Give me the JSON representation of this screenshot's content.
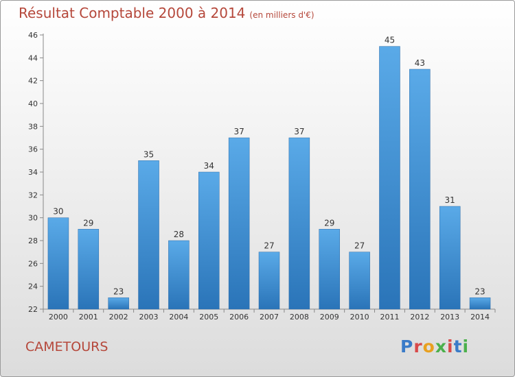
{
  "title": "Résultat Comptable 2000 à 2014",
  "subtitle": "(en milliers d'€)",
  "town": "CAMETOURS",
  "logo": "Proxiti",
  "colors": {
    "title": "#b5473a",
    "bar_top": "#5aaae8",
    "bar_bottom": "#2a74b8"
  },
  "chart_data": {
    "type": "bar",
    "categories": [
      "2000",
      "2001",
      "2002",
      "2003",
      "2004",
      "2005",
      "2006",
      "2007",
      "2008",
      "2009",
      "2010",
      "2011",
      "2012",
      "2013",
      "2014"
    ],
    "values": [
      30,
      29,
      23,
      35,
      28,
      34,
      37,
      27,
      37,
      29,
      27,
      45,
      43,
      31,
      23
    ],
    "data_labels": [
      "30",
      "29",
      "23",
      "35",
      "28",
      "34",
      "37",
      "27",
      "37",
      "29",
      "27",
      "45",
      "43",
      "31",
      "23"
    ],
    "ylim": [
      22,
      46
    ],
    "yticks": [
      "22",
      "24",
      "26",
      "28",
      "30",
      "32",
      "34",
      "36",
      "38",
      "40",
      "42",
      "44",
      "46"
    ],
    "grid": false,
    "xlabel": "",
    "ylabel": ""
  }
}
